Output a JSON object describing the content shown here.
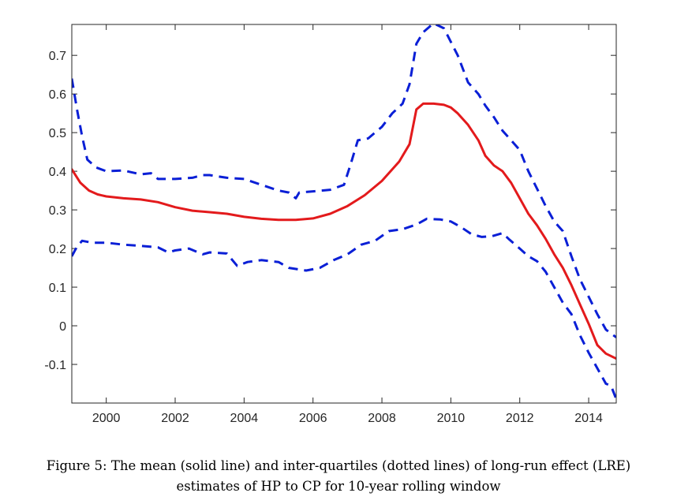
{
  "chart_data": {
    "type": "line",
    "title": "",
    "xlabel": "",
    "ylabel": "",
    "xlim": [
      1999.0,
      2014.8
    ],
    "ylim": [
      -0.2,
      0.78
    ],
    "xticks": [
      2000,
      2002,
      2004,
      2006,
      2008,
      2010,
      2012,
      2014
    ],
    "xtick_labels": [
      "2000",
      "2002",
      "2004",
      "2006",
      "2008",
      "2010",
      "2012",
      "2014"
    ],
    "yticks": [
      -0.1,
      0,
      0.1,
      0.2,
      0.3,
      0.4,
      0.5,
      0.6,
      0.7
    ],
    "ytick_labels": [
      "-0.1",
      "0",
      "0.1",
      "0.2",
      "0.3",
      "0.4",
      "0.5",
      "0.6",
      "0.7"
    ],
    "grid": false,
    "legend": "none",
    "series": [
      {
        "style": "solid",
        "color": "#e31a1c",
        "points": [
          [
            1999.0,
            0.405
          ],
          [
            1999.25,
            0.37
          ],
          [
            1999.5,
            0.35
          ],
          [
            1999.75,
            0.34
          ],
          [
            2000.0,
            0.335
          ],
          [
            2000.5,
            0.33
          ],
          [
            2001.0,
            0.327
          ],
          [
            2001.5,
            0.32
          ],
          [
            2002.0,
            0.307
          ],
          [
            2002.5,
            0.298
          ],
          [
            2003.0,
            0.294
          ],
          [
            2003.5,
            0.29
          ],
          [
            2004.0,
            0.282
          ],
          [
            2004.5,
            0.277
          ],
          [
            2005.0,
            0.274
          ],
          [
            2005.5,
            0.274
          ],
          [
            2006.0,
            0.278
          ],
          [
            2006.5,
            0.29
          ],
          [
            2007.0,
            0.31
          ],
          [
            2007.5,
            0.338
          ],
          [
            2008.0,
            0.375
          ],
          [
            2008.5,
            0.425
          ],
          [
            2008.8,
            0.47
          ],
          [
            2009.0,
            0.56
          ],
          [
            2009.2,
            0.575
          ],
          [
            2009.5,
            0.575
          ],
          [
            2009.8,
            0.572
          ],
          [
            2010.0,
            0.565
          ],
          [
            2010.2,
            0.55
          ],
          [
            2010.5,
            0.52
          ],
          [
            2010.8,
            0.48
          ],
          [
            2011.0,
            0.44
          ],
          [
            2011.25,
            0.415
          ],
          [
            2011.5,
            0.4
          ],
          [
            2011.75,
            0.37
          ],
          [
            2012.0,
            0.33
          ],
          [
            2012.25,
            0.29
          ],
          [
            2012.5,
            0.26
          ],
          [
            2012.75,
            0.225
          ],
          [
            2013.0,
            0.185
          ],
          [
            2013.25,
            0.15
          ],
          [
            2013.5,
            0.105
          ],
          [
            2013.75,
            0.055
          ],
          [
            2014.0,
            0.005
          ],
          [
            2014.25,
            -0.05
          ],
          [
            2014.5,
            -0.072
          ],
          [
            2014.8,
            -0.085
          ]
        ]
      },
      {
        "style": "dashed",
        "color": "#0a1fd6",
        "points": [
          [
            1999.0,
            0.64
          ],
          [
            1999.15,
            0.56
          ],
          [
            1999.3,
            0.49
          ],
          [
            1999.45,
            0.43
          ],
          [
            1999.7,
            0.41
          ],
          [
            2000.0,
            0.4
          ],
          [
            2000.5,
            0.402
          ],
          [
            2001.0,
            0.392
          ],
          [
            2001.3,
            0.395
          ],
          [
            2001.5,
            0.38
          ],
          [
            2002.0,
            0.38
          ],
          [
            2002.5,
            0.383
          ],
          [
            2002.8,
            0.39
          ],
          [
            2003.0,
            0.39
          ],
          [
            2003.5,
            0.383
          ],
          [
            2004.0,
            0.38
          ],
          [
            2004.5,
            0.365
          ],
          [
            2005.0,
            0.35
          ],
          [
            2005.3,
            0.345
          ],
          [
            2005.5,
            0.33
          ],
          [
            2005.6,
            0.345
          ],
          [
            2006.0,
            0.348
          ],
          [
            2006.5,
            0.352
          ],
          [
            2006.9,
            0.365
          ],
          [
            2007.1,
            0.42
          ],
          [
            2007.3,
            0.48
          ],
          [
            2007.6,
            0.485
          ],
          [
            2008.0,
            0.515
          ],
          [
            2008.3,
            0.55
          ],
          [
            2008.6,
            0.575
          ],
          [
            2008.8,
            0.625
          ],
          [
            2009.0,
            0.73
          ],
          [
            2009.2,
            0.76
          ],
          [
            2009.5,
            0.783
          ],
          [
            2009.8,
            0.77
          ],
          [
            2010.2,
            0.7
          ],
          [
            2010.5,
            0.63
          ],
          [
            2010.8,
            0.6
          ],
          [
            2011.0,
            0.57
          ],
          [
            2011.25,
            0.54
          ],
          [
            2011.5,
            0.505
          ],
          [
            2011.75,
            0.48
          ],
          [
            2012.0,
            0.455
          ],
          [
            2012.25,
            0.4
          ],
          [
            2012.5,
            0.355
          ],
          [
            2012.75,
            0.31
          ],
          [
            2013.0,
            0.27
          ],
          [
            2013.25,
            0.245
          ],
          [
            2013.5,
            0.18
          ],
          [
            2013.75,
            0.12
          ],
          [
            2014.0,
            0.075
          ],
          [
            2014.25,
            0.03
          ],
          [
            2014.5,
            -0.01
          ],
          [
            2014.8,
            -0.03
          ]
        ]
      },
      {
        "style": "dashed",
        "color": "#0a1fd6",
        "points": [
          [
            1999.0,
            0.18
          ],
          [
            1999.15,
            0.205
          ],
          [
            1999.3,
            0.22
          ],
          [
            1999.6,
            0.215
          ],
          [
            2000.0,
            0.215
          ],
          [
            2000.5,
            0.21
          ],
          [
            2001.0,
            0.207
          ],
          [
            2001.5,
            0.203
          ],
          [
            2001.8,
            0.19
          ],
          [
            2002.0,
            0.195
          ],
          [
            2002.4,
            0.2
          ],
          [
            2002.8,
            0.185
          ],
          [
            2003.0,
            0.19
          ],
          [
            2003.5,
            0.187
          ],
          [
            2003.8,
            0.155
          ],
          [
            2004.1,
            0.165
          ],
          [
            2004.5,
            0.17
          ],
          [
            2005.0,
            0.165
          ],
          [
            2005.3,
            0.15
          ],
          [
            2005.8,
            0.143
          ],
          [
            2006.2,
            0.15
          ],
          [
            2006.6,
            0.17
          ],
          [
            2007.0,
            0.185
          ],
          [
            2007.4,
            0.21
          ],
          [
            2007.8,
            0.22
          ],
          [
            2008.2,
            0.245
          ],
          [
            2008.6,
            0.25
          ],
          [
            2009.0,
            0.262
          ],
          [
            2009.3,
            0.277
          ],
          [
            2009.7,
            0.275
          ],
          [
            2010.0,
            0.27
          ],
          [
            2010.3,
            0.255
          ],
          [
            2010.6,
            0.237
          ],
          [
            2010.9,
            0.23
          ],
          [
            2011.2,
            0.232
          ],
          [
            2011.5,
            0.24
          ],
          [
            2011.7,
            0.223
          ],
          [
            2012.0,
            0.2
          ],
          [
            2012.25,
            0.18
          ],
          [
            2012.5,
            0.167
          ],
          [
            2012.75,
            0.14
          ],
          [
            2013.0,
            0.1
          ],
          [
            2013.25,
            0.06
          ],
          [
            2013.5,
            0.03
          ],
          [
            2013.75,
            -0.025
          ],
          [
            2014.0,
            -0.07
          ],
          [
            2014.25,
            -0.11
          ],
          [
            2014.5,
            -0.15
          ],
          [
            2014.65,
            -0.155
          ],
          [
            2014.8,
            -0.19
          ]
        ]
      }
    ]
  },
  "caption": {
    "line1": "Figure 5: The mean (solid line) and inter-quartiles (dotted lines) of long-run effect (LRE)",
    "line2": "estimates of HP to CP for 10-year rolling window"
  }
}
